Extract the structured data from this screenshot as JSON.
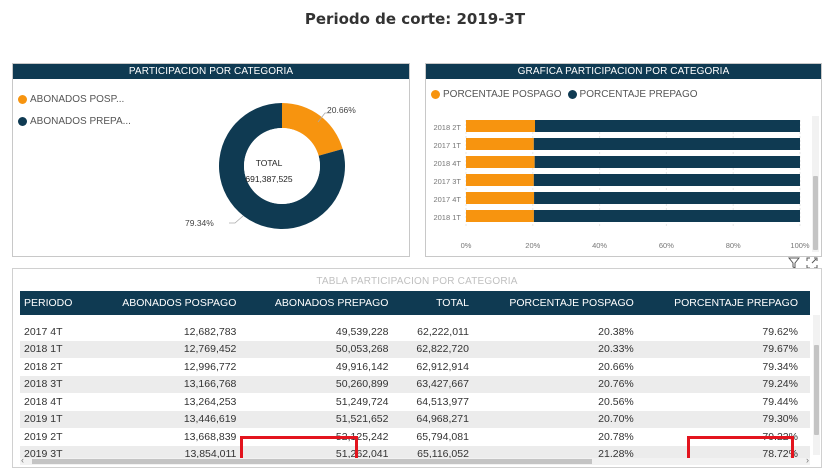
{
  "page": {
    "title": "Periodo de corte: 2019-3T"
  },
  "donut_panel": {
    "title": "PARTICIPACION POR CATEGORIA",
    "legend": [
      {
        "label": "ABONADOS POSP...",
        "color": "#f7940f"
      },
      {
        "label": "ABONADOS PREPA...",
        "color": "#0f3a52"
      }
    ],
    "center_label": "TOTAL",
    "center_value": "691,387,525",
    "slice_labels": [
      "20.66%",
      "79.34%"
    ]
  },
  "bar_panel": {
    "title": "GRAFICA PARTICIPACION POR CATEGORIA",
    "legend": [
      {
        "label": "PORCENTAJE POSPAGO",
        "color": "#f7940f"
      },
      {
        "label": "PORCENTAJE PREPAGO",
        "color": "#0f3a52"
      }
    ]
  },
  "chart_data": [
    {
      "type": "pie",
      "categories": [
        "ABONADOS POSP...",
        "ABONADOS PREPA..."
      ],
      "values": [
        20.66,
        79.34
      ],
      "labels": [
        "20.66%",
        "79.34%"
      ],
      "colors": [
        "#f7940f",
        "#0f3a52"
      ]
    },
    {
      "type": "bar",
      "orientation": "horizontal",
      "stacked": true,
      "categories": [
        "2018 2T",
        "2017 1T",
        "2018 4T",
        "2017 3T",
        "2017 4T",
        "2018 1T"
      ],
      "series": [
        {
          "name": "PORCENTAJE POSPAGO",
          "color": "#f7940f",
          "values": [
            20.66,
            20.3,
            20.56,
            20.3,
            20.38,
            20.33
          ]
        },
        {
          "name": "PORCENTAJE PREPAGO",
          "color": "#0f3a52",
          "values": [
            79.34,
            79.7,
            79.44,
            79.7,
            79.62,
            79.67
          ]
        }
      ],
      "xlim": [
        0,
        100
      ],
      "x_ticks": [
        "0%",
        "20%",
        "40%",
        "60%",
        "80%",
        "100%"
      ]
    }
  ],
  "table": {
    "title": "TABLA PARTICIPACION POR CATEGORIA",
    "columns": [
      "PERIODO",
      "ABONADOS POSPAGO",
      "ABONADOS PREPAGO",
      "TOTAL",
      "PORCENTAJE POSPAGO",
      "PORCENTAJE PREPAGO"
    ],
    "rows": [
      [
        "2017 4T",
        "12,682,783",
        "49,539,228",
        "62,222,011",
        "20.38%",
        "79.62%"
      ],
      [
        "2018 1T",
        "12,769,452",
        "50,053,268",
        "62,822,720",
        "20.33%",
        "79.67%"
      ],
      [
        "2018 2T",
        "12,996,772",
        "49,916,142",
        "62,912,914",
        "20.66%",
        "79.34%"
      ],
      [
        "2018 3T",
        "13,166,768",
        "50,260,899",
        "63,427,667",
        "20.76%",
        "79.24%"
      ],
      [
        "2018 4T",
        "13,264,253",
        "51,249,724",
        "64,513,977",
        "20.56%",
        "79.44%"
      ],
      [
        "2019 1T",
        "13,446,619",
        "51,521,652",
        "64,968,271",
        "20.70%",
        "79.30%"
      ],
      [
        "2019 2T",
        "13,668,839",
        "52,125,242",
        "65,794,081",
        "20.78%",
        "79.22%"
      ],
      [
        "2019 3T",
        "13,854,011",
        "51,262,041",
        "65,116,052",
        "21.28%",
        "78.72%"
      ]
    ],
    "highlight_color": "#e3141e"
  }
}
